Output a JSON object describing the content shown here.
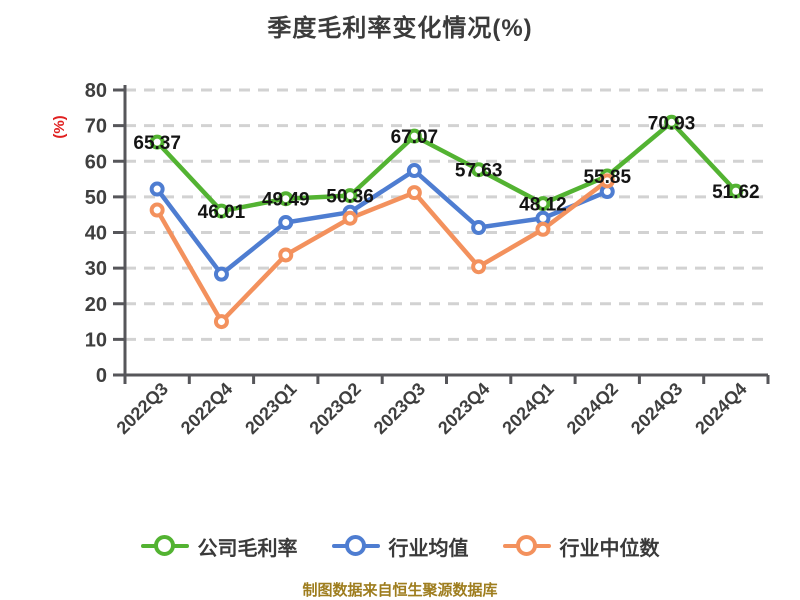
{
  "title": "季度毛利率变化情况(%)",
  "y_axis_name": "(%)",
  "y_axis_name_color": "#e02020",
  "footer": {
    "text": "制图数据来自恒生聚源数据库"
  },
  "legend": {
    "items": [
      {
        "label": "公司毛利率",
        "color": "#53b332"
      },
      {
        "label": "行业均值",
        "color": "#4e7dd1"
      },
      {
        "label": "行业中位数",
        "color": "#f3915d"
      }
    ]
  },
  "chart_data": {
    "type": "line",
    "title": "季度毛利率变化情况(%)",
    "ylabel": "(%)",
    "categories": [
      "2022Q3",
      "2022Q4",
      "2023Q1",
      "2023Q2",
      "2023Q3",
      "2023Q4",
      "2024Q1",
      "2024Q2",
      "2024Q3",
      "2024Q4"
    ],
    "series": [
      {
        "name": "公司毛利率",
        "slug": "company-gross-margin",
        "color": "#53b332",
        "values": [
          65.37,
          46.01,
          49.49,
          50.36,
          67.07,
          57.63,
          48.12,
          55.85,
          70.93,
          51.62
        ],
        "data_labels": [
          "65.37",
          "46.01",
          "49.49",
          "50.36",
          "67.07",
          "57.63",
          "48.12",
          "55.85",
          "70.93",
          "51.62"
        ]
      },
      {
        "name": "行业均值",
        "slug": "industry-mean",
        "color": "#4e7dd1",
        "values": [
          52.2,
          28.3,
          42.8,
          45.7,
          57.4,
          41.4,
          44.0,
          51.5
        ],
        "data_labels": null
      },
      {
        "name": "行业中位数",
        "slug": "industry-median",
        "color": "#f3915d",
        "values": [
          46.3,
          15.0,
          33.7,
          44.0,
          51.2,
          30.4,
          40.9,
          54.5
        ],
        "data_labels": null
      }
    ],
    "ylim": [
      0,
      80
    ],
    "y_tick_step": 10,
    "grid": "horizontal-dashed",
    "grid_color": "#d2d2d2",
    "axis_color": "#56565a",
    "tick_label_color": "#3f3f3f",
    "data_label_color": "#141414",
    "x_label_rotation": 45,
    "legend_position": "bottom",
    "marker": "circle-white-fill"
  }
}
